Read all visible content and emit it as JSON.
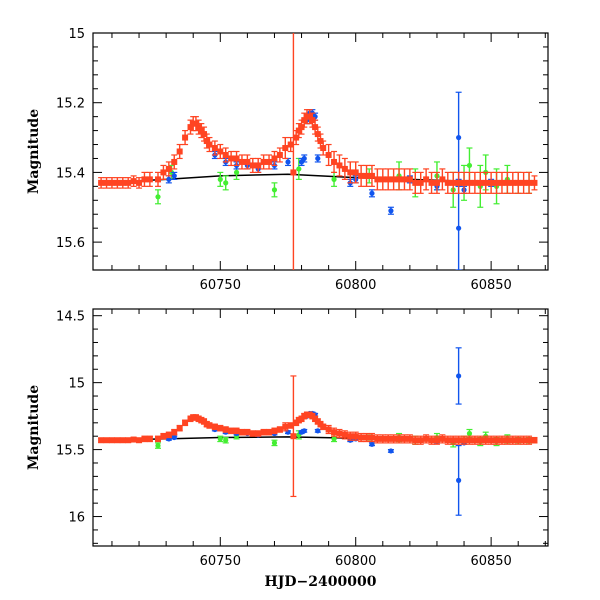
{
  "colors": {
    "red": "#ff4422",
    "green": "#44ee33",
    "blue": "#1155ee",
    "model": "#000000"
  },
  "chart_data": [
    {
      "type": "scatter",
      "title": "",
      "xlabel": "",
      "ylabel": "Magnitude",
      "xlim": [
        60703,
        60871
      ],
      "ylim": [
        15.68,
        15.0
      ],
      "y_inverted": true,
      "x_ticks": [
        "60750",
        "60800",
        "60850"
      ],
      "y_ticks": [
        "15",
        "15.2",
        "15.4",
        "15.6"
      ],
      "model_line": {
        "x": [
          60705,
          60730,
          60750,
          60775,
          60800,
          60820,
          60840,
          60865
        ],
        "y": [
          15.43,
          15.42,
          15.41,
          15.405,
          15.415,
          15.42,
          15.425,
          15.43
        ]
      },
      "series": [
        {
          "x": [
            60706,
            60708,
            60710,
            60712,
            60714,
            60716,
            60718,
            60720,
            60722,
            60724,
            60727,
            60729,
            60731,
            60733,
            60735,
            60737,
            60739,
            60740,
            60741,
            60742,
            60743,
            60744,
            60745,
            60746,
            60748,
            60750,
            60752,
            60754,
            60756,
            60758,
            60760,
            60762,
            60764,
            60766,
            60768,
            60770,
            60772,
            60774,
            60776,
            60778,
            60779,
            60780,
            60781,
            60782,
            60783,
            60784,
            60785,
            60786,
            60787,
            60788,
            60790,
            60792,
            60794,
            60796,
            60798,
            60800,
            60802,
            60804,
            60806,
            60808,
            60810,
            60812,
            60814,
            60816,
            60818,
            60820,
            60822,
            60824,
            60826,
            60828,
            60830,
            60832,
            60834,
            60836,
            60838,
            60840,
            60842,
            60844,
            60846,
            60848,
            60850,
            60852,
            60854,
            60856,
            60858,
            60860,
            60862,
            60864,
            60866
          ],
          "y": [
            15.43,
            15.43,
            15.43,
            15.43,
            15.43,
            15.43,
            15.425,
            15.43,
            15.42,
            15.42,
            15.42,
            15.4,
            15.39,
            15.37,
            15.34,
            15.3,
            15.27,
            15.26,
            15.26,
            15.27,
            15.28,
            15.29,
            15.31,
            15.32,
            15.33,
            15.34,
            15.35,
            15.36,
            15.36,
            15.37,
            15.37,
            15.38,
            15.38,
            15.37,
            15.37,
            15.36,
            15.35,
            15.33,
            15.32,
            15.3,
            15.28,
            15.27,
            15.25,
            15.24,
            15.24,
            15.25,
            15.27,
            15.29,
            15.31,
            15.33,
            15.35,
            15.37,
            15.38,
            15.39,
            15.4,
            15.4,
            15.41,
            15.41,
            15.41,
            15.42,
            15.42,
            15.42,
            15.42,
            15.42,
            15.42,
            15.42,
            15.43,
            15.43,
            15.42,
            15.43,
            15.43,
            15.42,
            15.43,
            15.43,
            15.43,
            15.43,
            15.43,
            15.43,
            15.43,
            15.43,
            15.43,
            15.43,
            15.43,
            15.43,
            15.43,
            15.43,
            15.43,
            15.43,
            15.43
          ],
          "err": [
            0.015,
            0.015,
            0.015,
            0.015,
            0.015,
            0.015,
            0.015,
            0.015,
            0.02,
            0.02,
            0.02,
            0.02,
            0.02,
            0.02,
            0.02,
            0.02,
            0.02,
            0.02,
            0.02,
            0.02,
            0.02,
            0.02,
            0.02,
            0.02,
            0.02,
            0.02,
            0.02,
            0.02,
            0.02,
            0.02,
            0.02,
            0.02,
            0.02,
            0.02,
            0.02,
            0.02,
            0.02,
            0.03,
            0.02,
            0.02,
            0.02,
            0.02,
            0.02,
            0.02,
            0.02,
            0.02,
            0.02,
            0.02,
            0.02,
            0.02,
            0.03,
            0.03,
            0.03,
            0.03,
            0.03,
            0.03,
            0.03,
            0.03,
            0.03,
            0.03,
            0.03,
            0.03,
            0.03,
            0.03,
            0.03,
            0.03,
            0.03,
            0.03,
            0.03,
            0.03,
            0.03,
            0.03,
            0.03,
            0.03,
            0.03,
            0.03,
            0.03,
            0.03,
            0.03,
            0.03,
            0.03,
            0.03,
            0.03,
            0.03,
            0.03,
            0.03,
            0.03,
            0.03,
            0.02
          ]
        },
        {
          "x": [
            60777
          ],
          "y": [
            15.4
          ],
          "err": [
            0.68
          ]
        },
        {
          "x": [
            60727,
            60732,
            60750,
            60752,
            60756,
            60770,
            60779,
            60792,
            60805,
            60816,
            60822,
            60830,
            60836,
            60840,
            60842,
            60846,
            60848,
            60852,
            60856,
            60860,
            60864
          ],
          "y": [
            15.47,
            15.4,
            15.42,
            15.43,
            15.4,
            15.45,
            15.39,
            15.42,
            15.41,
            15.41,
            15.43,
            15.41,
            15.45,
            15.43,
            15.38,
            15.44,
            15.4,
            15.44,
            15.42,
            15.43,
            15.43
          ],
          "err": [
            0.02,
            0.02,
            0.02,
            0.02,
            0.02,
            0.02,
            0.03,
            0.02,
            0.02,
            0.04,
            0.04,
            0.04,
            0.05,
            0.05,
            0.05,
            0.06,
            0.05,
            0.05,
            0.04,
            0.03,
            0.03
          ]
        },
        {
          "x": [
            60731,
            60733,
            60748,
            60752,
            60756,
            60760,
            60764,
            60770,
            60775,
            60780,
            60781,
            60782,
            60783,
            60784,
            60785,
            60786,
            60798,
            60800,
            60806,
            60813,
            60820,
            60830,
            60838,
            60840,
            60850
          ],
          "y": [
            15.42,
            15.41,
            15.35,
            15.37,
            15.38,
            15.38,
            15.39,
            15.38,
            15.37,
            15.37,
            15.36,
            15.25,
            15.23,
            15.23,
            15.24,
            15.36,
            15.43,
            15.42,
            15.46,
            15.51,
            15.42,
            15.44,
            15.43,
            15.45,
            15.43
          ],
          "err": [
            0.01,
            0.01,
            0.01,
            0.01,
            0.01,
            0.01,
            0.01,
            0.01,
            0.01,
            0.01,
            0.01,
            0.01,
            0.01,
            0.01,
            0.01,
            0.01,
            0.01,
            0.01,
            0.01,
            0.01,
            0.01,
            0.01,
            0.01,
            0.01,
            0.01
          ]
        },
        {
          "x": [
            60838
          ],
          "y": [
            15.3
          ],
          "err": [
            0.13
          ]
        },
        {
          "x": [
            60838
          ],
          "y": [
            15.56
          ],
          "err": [
            0.12
          ]
        }
      ]
    },
    {
      "type": "scatter",
      "title": "",
      "xlabel": "HJD−2400000",
      "ylabel": "Magnitude",
      "xlim": [
        60703,
        60871
      ],
      "ylim": [
        16.22,
        14.45
      ],
      "y_inverted": true,
      "x_ticks": [
        "60750",
        "60800",
        "60850"
      ],
      "y_ticks": [
        "14.5",
        "15",
        "15.5",
        "16"
      ],
      "model_line": {
        "x": [
          60705,
          60730,
          60750,
          60775,
          60800,
          60820,
          60840,
          60865
        ],
        "y": [
          15.43,
          15.42,
          15.41,
          15.405,
          15.415,
          15.42,
          15.425,
          15.43
        ]
      },
      "series": [
        {
          "x": [
            60706,
            60708,
            60710,
            60712,
            60714,
            60716,
            60718,
            60720,
            60722,
            60724,
            60727,
            60729,
            60731,
            60733,
            60735,
            60737,
            60739,
            60740,
            60741,
            60742,
            60743,
            60744,
            60745,
            60746,
            60748,
            60750,
            60752,
            60754,
            60756,
            60758,
            60760,
            60762,
            60764,
            60766,
            60768,
            60770,
            60772,
            60774,
            60776,
            60778,
            60779,
            60780,
            60781,
            60782,
            60783,
            60784,
            60785,
            60786,
            60787,
            60788,
            60790,
            60792,
            60794,
            60796,
            60798,
            60800,
            60802,
            60804,
            60806,
            60808,
            60810,
            60812,
            60814,
            60816,
            60818,
            60820,
            60822,
            60824,
            60826,
            60828,
            60830,
            60832,
            60834,
            60836,
            60838,
            60840,
            60842,
            60844,
            60846,
            60848,
            60850,
            60852,
            60854,
            60856,
            60858,
            60860,
            60862,
            60864,
            60866
          ],
          "y": [
            15.43,
            15.43,
            15.43,
            15.43,
            15.43,
            15.43,
            15.425,
            15.43,
            15.42,
            15.42,
            15.42,
            15.4,
            15.39,
            15.37,
            15.34,
            15.3,
            15.27,
            15.26,
            15.26,
            15.27,
            15.28,
            15.29,
            15.31,
            15.32,
            15.33,
            15.34,
            15.35,
            15.36,
            15.36,
            15.37,
            15.37,
            15.38,
            15.38,
            15.37,
            15.37,
            15.36,
            15.35,
            15.33,
            15.32,
            15.3,
            15.28,
            15.27,
            15.25,
            15.24,
            15.24,
            15.25,
            15.27,
            15.29,
            15.31,
            15.33,
            15.35,
            15.37,
            15.38,
            15.39,
            15.4,
            15.4,
            15.41,
            15.41,
            15.41,
            15.42,
            15.42,
            15.42,
            15.42,
            15.42,
            15.42,
            15.42,
            15.43,
            15.43,
            15.42,
            15.43,
            15.43,
            15.42,
            15.43,
            15.43,
            15.43,
            15.43,
            15.43,
            15.43,
            15.43,
            15.43,
            15.43,
            15.43,
            15.43,
            15.43,
            15.43,
            15.43,
            15.43,
            15.43,
            15.43
          ],
          "err": [
            0.015,
            0.015,
            0.015,
            0.015,
            0.015,
            0.015,
            0.015,
            0.015,
            0.02,
            0.02,
            0.02,
            0.02,
            0.02,
            0.02,
            0.02,
            0.02,
            0.02,
            0.02,
            0.02,
            0.02,
            0.02,
            0.02,
            0.02,
            0.02,
            0.02,
            0.02,
            0.02,
            0.02,
            0.02,
            0.02,
            0.02,
            0.02,
            0.02,
            0.02,
            0.02,
            0.02,
            0.02,
            0.03,
            0.02,
            0.02,
            0.02,
            0.02,
            0.02,
            0.02,
            0.02,
            0.02,
            0.02,
            0.02,
            0.02,
            0.02,
            0.03,
            0.03,
            0.03,
            0.03,
            0.03,
            0.03,
            0.03,
            0.03,
            0.03,
            0.03,
            0.03,
            0.03,
            0.03,
            0.03,
            0.03,
            0.03,
            0.03,
            0.03,
            0.03,
            0.03,
            0.03,
            0.03,
            0.03,
            0.03,
            0.03,
            0.03,
            0.03,
            0.03,
            0.03,
            0.03,
            0.03,
            0.03,
            0.03,
            0.03,
            0.03,
            0.03,
            0.03,
            0.03,
            0.02
          ]
        },
        {
          "x": [
            60777
          ],
          "y": [
            15.4
          ],
          "err": [
            0.45
          ]
        },
        {
          "x": [
            60727,
            60732,
            60750,
            60752,
            60756,
            60770,
            60779,
            60792,
            60805,
            60816,
            60822,
            60830,
            60836,
            60840,
            60842,
            60846,
            60848,
            60852,
            60856,
            60860,
            60864
          ],
          "y": [
            15.47,
            15.4,
            15.42,
            15.43,
            15.4,
            15.45,
            15.39,
            15.42,
            15.41,
            15.41,
            15.43,
            15.41,
            15.45,
            15.43,
            15.38,
            15.44,
            15.4,
            15.44,
            15.42,
            15.43,
            15.43
          ],
          "err": [
            0.02,
            0.02,
            0.02,
            0.02,
            0.02,
            0.02,
            0.03,
            0.02,
            0.02,
            0.03,
            0.03,
            0.03,
            0.03,
            0.03,
            0.03,
            0.03,
            0.03,
            0.03,
            0.03,
            0.02,
            0.02
          ]
        },
        {
          "x": [
            60731,
            60733,
            60748,
            60752,
            60756,
            60760,
            60764,
            60770,
            60775,
            60780,
            60781,
            60782,
            60783,
            60784,
            60785,
            60786,
            60798,
            60800,
            60806,
            60813,
            60820,
            60830,
            60838,
            60840,
            60850
          ],
          "y": [
            15.42,
            15.41,
            15.35,
            15.37,
            15.38,
            15.38,
            15.39,
            15.38,
            15.37,
            15.37,
            15.36,
            15.25,
            15.23,
            15.23,
            15.24,
            15.36,
            15.43,
            15.42,
            15.46,
            15.51,
            15.42,
            15.44,
            15.43,
            15.45,
            15.43
          ],
          "err": [
            0.01,
            0.01,
            0.01,
            0.01,
            0.01,
            0.01,
            0.01,
            0.01,
            0.01,
            0.01,
            0.01,
            0.01,
            0.01,
            0.01,
            0.01,
            0.01,
            0.01,
            0.01,
            0.01,
            0.01,
            0.01,
            0.01,
            0.01,
            0.01,
            0.01
          ]
        },
        {
          "x": [
            60838
          ],
          "y": [
            14.95
          ],
          "err": [
            0.21
          ]
        },
        {
          "x": [
            60838
          ],
          "y": [
            15.73
          ],
          "err": [
            0.26
          ]
        }
      ]
    }
  ]
}
